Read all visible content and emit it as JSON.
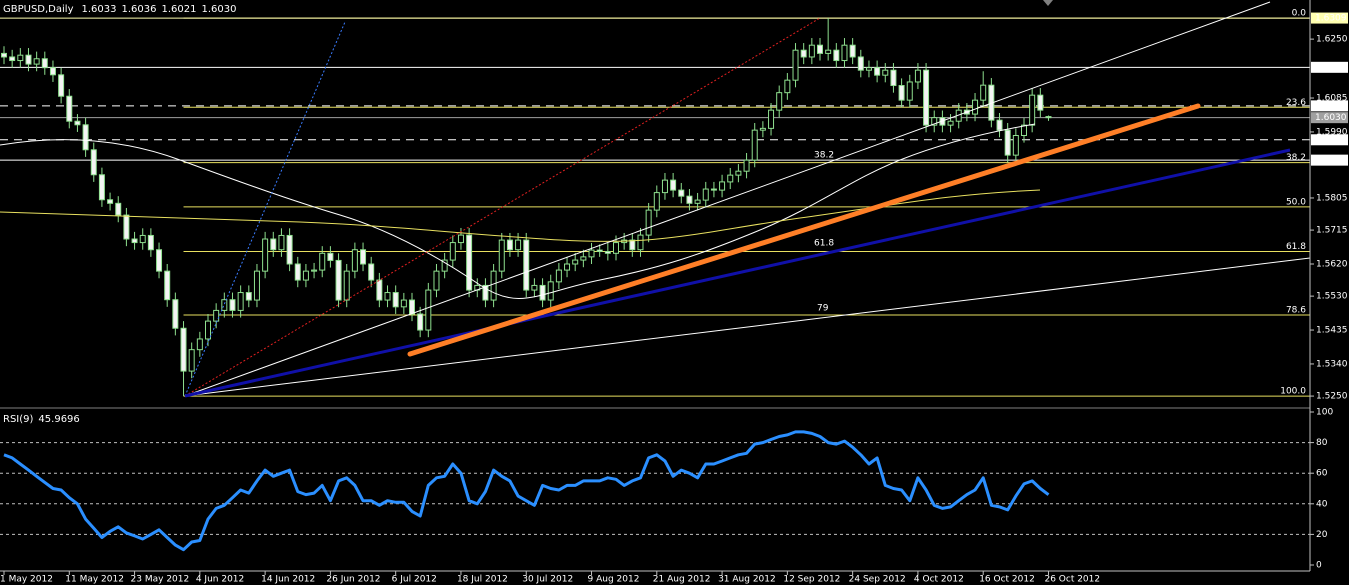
{
  "chart_data": [
    {
      "type": "candlestick",
      "title": "GBPUSD,Daily",
      "quote": [
        "1.6033",
        "1.6036",
        "1.6021",
        "1.6030"
      ],
      "categories": [
        "1 May 2012",
        null,
        null,
        null,
        null,
        null,
        null,
        null,
        "11 May 2012",
        null,
        null,
        null,
        null,
        null,
        null,
        null,
        "23 May 2012",
        null,
        null,
        null,
        null,
        null,
        null,
        null,
        "4 Jun 2012",
        null,
        null,
        null,
        null,
        null,
        null,
        null,
        "14 Jun 2012",
        null,
        null,
        null,
        null,
        null,
        null,
        null,
        "26 Jun 2012",
        null,
        null,
        null,
        null,
        null,
        null,
        null,
        "6 Jul 2012",
        null,
        null,
        null,
        null,
        null,
        null,
        null,
        "18 Jul 2012",
        null,
        null,
        null,
        null,
        null,
        null,
        null,
        "30 Jul 2012",
        null,
        null,
        null,
        null,
        null,
        null,
        null,
        "9 Aug 2012",
        null,
        null,
        null,
        null,
        null,
        null,
        null,
        "21 Aug 2012",
        null,
        null,
        null,
        null,
        null,
        null,
        null,
        "31 Aug 2012",
        null,
        null,
        null,
        null,
        null,
        null,
        null,
        "12 Sep 2012",
        null,
        null,
        null,
        null,
        null,
        null,
        null,
        "24 Sep 2012",
        null,
        null,
        null,
        null,
        null,
        null,
        null,
        "4 Oct 2012",
        null,
        null,
        null,
        null,
        null,
        null,
        null,
        "16 Oct 2012",
        null,
        null,
        null,
        null,
        null,
        null,
        null,
        "26 Oct 2012"
      ],
      "ohlc": [
        [
          1.621,
          1.623,
          1.618,
          1.62
        ],
        [
          1.62,
          1.622,
          1.617,
          1.619
        ],
        [
          1.619,
          1.6225,
          1.617,
          1.6205
        ],
        [
          1.6205,
          1.6225,
          1.616,
          1.618
        ],
        [
          1.618,
          1.6215,
          1.616,
          1.6195
        ],
        [
          1.6195,
          1.6215,
          1.615,
          1.617
        ],
        [
          1.617,
          1.619,
          1.613,
          1.615
        ],
        [
          1.615,
          1.617,
          1.607,
          1.609
        ],
        [
          1.609,
          1.611,
          1.6,
          1.602
        ],
        [
          1.602,
          1.604,
          1.599,
          1.601
        ],
        [
          1.601,
          1.603,
          1.592,
          1.594
        ],
        [
          1.594,
          1.596,
          1.585,
          1.587
        ],
        [
          1.587,
          1.589,
          1.578,
          1.58
        ],
        [
          1.58,
          1.582,
          1.577,
          1.579
        ],
        [
          1.579,
          1.581,
          1.5737,
          1.5757
        ],
        [
          1.5757,
          1.5777,
          1.567,
          1.569
        ],
        [
          1.569,
          1.571,
          1.566,
          1.568
        ],
        [
          1.568,
          1.572,
          1.566,
          1.57
        ],
        [
          1.57,
          1.572,
          1.564,
          1.566
        ],
        [
          1.566,
          1.568,
          1.558,
          1.56
        ],
        [
          1.56,
          1.562,
          1.55,
          1.552
        ],
        [
          1.552,
          1.554,
          1.542,
          1.544
        ],
        [
          1.544,
          1.546,
          1.525,
          1.532
        ],
        [
          1.532,
          1.54,
          1.53,
          1.538
        ],
        [
          1.538,
          1.543,
          1.536,
          1.541
        ],
        [
          1.541,
          1.548,
          1.539,
          1.546
        ],
        [
          1.546,
          1.551,
          1.544,
          1.549
        ],
        [
          1.549,
          1.554,
          1.547,
          1.552
        ],
        [
          1.552,
          1.554,
          1.547,
          1.549
        ],
        [
          1.549,
          1.556,
          1.547,
          1.554
        ],
        [
          1.554,
          1.556,
          1.5499,
          1.5519
        ],
        [
          1.5519,
          1.562,
          1.5499,
          1.56
        ],
        [
          1.56,
          1.571,
          1.558,
          1.569
        ],
        [
          1.569,
          1.571,
          1.564,
          1.566
        ],
        [
          1.566,
          1.572,
          1.564,
          1.57
        ],
        [
          1.57,
          1.572,
          1.56,
          1.562
        ],
        [
          1.562,
          1.564,
          1.5555,
          1.5575
        ],
        [
          1.5575,
          1.562,
          1.5555,
          1.56
        ],
        [
          1.56,
          1.5623,
          1.558,
          1.5603
        ],
        [
          1.5603,
          1.567,
          1.5583,
          1.565
        ],
        [
          1.565,
          1.567,
          1.561,
          1.563
        ],
        [
          1.563,
          1.565,
          1.5499,
          1.5519
        ],
        [
          1.5519,
          1.562,
          1.5499,
          1.56
        ],
        [
          1.56,
          1.568,
          1.558,
          1.566
        ],
        [
          1.566,
          1.568,
          1.56,
          1.562
        ],
        [
          1.562,
          1.564,
          1.5555,
          1.5575
        ],
        [
          1.5575,
          1.5595,
          1.5499,
          1.5519
        ],
        [
          1.5519,
          1.556,
          1.5499,
          1.554
        ],
        [
          1.554,
          1.556,
          1.548,
          1.55
        ],
        [
          1.55,
          1.5539,
          1.548,
          1.5519
        ],
        [
          1.5519,
          1.5539,
          1.546,
          1.548
        ],
        [
          1.548,
          1.55,
          1.5415,
          1.5435
        ],
        [
          1.5435,
          1.5567,
          1.5415,
          1.5547
        ],
        [
          1.5547,
          1.562,
          1.5527,
          1.56
        ],
        [
          1.56,
          1.5651,
          1.558,
          1.5631
        ],
        [
          1.5631,
          1.57,
          1.5611,
          1.568
        ],
        [
          1.568,
          1.5721,
          1.566,
          1.5701
        ],
        [
          1.5701,
          1.5721,
          1.5527,
          1.5547
        ],
        [
          1.5547,
          1.558,
          1.5527,
          1.556
        ],
        [
          1.556,
          1.558,
          1.5499,
          1.5519
        ],
        [
          1.5519,
          1.562,
          1.5499,
          1.56
        ],
        [
          1.56,
          1.5707,
          1.558,
          1.5687
        ],
        [
          1.5687,
          1.5707,
          1.564,
          1.566
        ],
        [
          1.566,
          1.5707,
          1.564,
          1.5687
        ],
        [
          1.5687,
          1.5707,
          1.5527,
          1.5547
        ],
        [
          1.5547,
          1.558,
          1.5527,
          1.556
        ],
        [
          1.556,
          1.558,
          1.5499,
          1.5519
        ],
        [
          1.5519,
          1.559,
          1.5499,
          1.557
        ],
        [
          1.557,
          1.5623,
          1.555,
          1.5603
        ],
        [
          1.5603,
          1.564,
          1.5583,
          1.562
        ],
        [
          1.562,
          1.5651,
          1.56,
          1.5631
        ],
        [
          1.5631,
          1.566,
          1.5611,
          1.564
        ],
        [
          1.564,
          1.5679,
          1.562,
          1.5659
        ],
        [
          1.5659,
          1.5675,
          1.564,
          1.5655
        ],
        [
          1.5655,
          1.5679,
          1.563,
          1.565
        ],
        [
          1.565,
          1.57,
          1.563,
          1.568
        ],
        [
          1.568,
          1.5707,
          1.566,
          1.5687
        ],
        [
          1.5687,
          1.5707,
          1.564,
          1.566
        ],
        [
          1.566,
          1.5721,
          1.564,
          1.5701
        ],
        [
          1.5701,
          1.5791,
          1.5681,
          1.5771
        ],
        [
          1.5771,
          1.584,
          1.5751,
          1.582
        ],
        [
          1.582,
          1.5875,
          1.58,
          1.5855
        ],
        [
          1.5855,
          1.5875,
          1.5807,
          1.5827
        ],
        [
          1.5827,
          1.5847,
          1.579,
          1.581
        ],
        [
          1.581,
          1.583,
          1.577,
          1.579
        ],
        [
          1.579,
          1.5819,
          1.577,
          1.5799
        ],
        [
          1.5799,
          1.585,
          1.5779,
          1.583
        ],
        [
          1.583,
          1.585,
          1.5807,
          1.5827
        ],
        [
          1.5827,
          1.587,
          1.5807,
          1.585
        ],
        [
          1.585,
          1.5889,
          1.583,
          1.5869
        ],
        [
          1.5869,
          1.59,
          1.5849,
          1.588
        ],
        [
          1.588,
          1.5931,
          1.586,
          1.5911
        ],
        [
          1.5911,
          1.6015,
          1.5891,
          1.5995
        ],
        [
          1.5995,
          1.602,
          1.5975,
          1.6
        ],
        [
          1.6,
          1.6071,
          1.598,
          1.6051
        ],
        [
          1.6051,
          1.612,
          1.6031,
          1.61
        ],
        [
          1.61,
          1.6155,
          1.608,
          1.6135
        ],
        [
          1.6135,
          1.6239,
          1.6115,
          1.6219
        ],
        [
          1.6219,
          1.6239,
          1.618,
          1.62
        ],
        [
          1.62,
          1.6253,
          1.618,
          1.6233
        ],
        [
          1.6233,
          1.6253,
          1.619,
          1.621
        ],
        [
          1.621,
          1.6309,
          1.619,
          1.6219
        ],
        [
          1.6219,
          1.6239,
          1.617,
          1.619
        ],
        [
          1.619,
          1.6253,
          1.617,
          1.6233
        ],
        [
          1.6233,
          1.6253,
          1.618,
          1.62
        ],
        [
          1.62,
          1.622,
          1.6143,
          1.6163
        ],
        [
          1.6163,
          1.619,
          1.6143,
          1.617
        ],
        [
          1.617,
          1.619,
          1.6129,
          1.6149
        ],
        [
          1.6149,
          1.6183,
          1.6129,
          1.6163
        ],
        [
          1.6163,
          1.6183,
          1.61,
          1.612
        ],
        [
          1.612,
          1.614,
          1.6059,
          1.6079
        ],
        [
          1.6079,
          1.615,
          1.6059,
          1.613
        ],
        [
          1.613,
          1.6183,
          1.611,
          1.6163
        ],
        [
          1.6163,
          1.6183,
          1.5989,
          1.6009
        ],
        [
          1.6009,
          1.605,
          1.5989,
          1.603
        ],
        [
          1.603,
          1.605,
          1.5989,
          1.6009
        ],
        [
          1.6009,
          1.604,
          1.5989,
          1.602
        ],
        [
          1.602,
          1.6071,
          1.6,
          1.6051
        ],
        [
          1.6051,
          1.6071,
          1.602,
          1.604
        ],
        [
          1.604,
          1.6099,
          1.602,
          1.6079
        ],
        [
          1.6079,
          1.616,
          1.6059,
          1.6121
        ],
        [
          1.6121,
          1.6141,
          1.6003,
          1.6023
        ],
        [
          1.6023,
          1.6043,
          1.5975,
          1.5995
        ],
        [
          1.5995,
          1.6015,
          1.5905,
          1.5925
        ],
        [
          1.5925,
          1.6,
          1.5905,
          1.598
        ],
        [
          1.598,
          1.6029,
          1.596,
          1.6009
        ],
        [
          1.6009,
          1.6113,
          1.5989,
          1.6093
        ],
        [
          1.6093,
          1.6113,
          1.6031,
          1.6051
        ],
        [
          1.6033,
          1.6036,
          1.6021,
          1.603
        ]
      ],
      "up_color": "#000000",
      "down_color": "#f4f4f4",
      "wick_color": "#8fe08f",
      "ylim": [
        1.5225,
        1.6354
      ],
      "yticks": [
        {
          "value": 1.625,
          "label": "1.6250"
        },
        1.6085,
        {
          "value": 1.599,
          "label": "1.5990"
        },
        1.5805,
        1.5715,
        {
          "value": 1.562,
          "label": "1.5620"
        },
        {
          "value": 1.553,
          "label": "1.5530"
        },
        1.5435,
        {
          "value": 1.534,
          "label": "1.5340"
        },
        {
          "value": 1.525,
          "label": "1.5250"
        }
      ],
      "levels": [
        {
          "value": 1.6309,
          "label": "1.6309",
          "color": "#ffffb0",
          "style": "solid"
        },
        {
          "value": 1.6171,
          "label": "1.6171",
          "color": "#ffffff",
          "style": "solid"
        },
        {
          "value": 1.6063,
          "label": "1.6063",
          "color": "#ffffff",
          "style": "dashed"
        },
        {
          "value": 1.603,
          "label": "1.6030",
          "color": "#a0a0a0",
          "style": "solid"
        },
        {
          "value": 1.5968,
          "label": "1.5968",
          "color": "#ffffff",
          "style": "dashed"
        },
        {
          "value": 1.5911,
          "label": "1.5911",
          "color": "#ffffff",
          "style": "solid"
        }
      ],
      "fib_color": "#e8e060",
      "fib_levels": [
        {
          "value": 1.6309,
          "label": "0.0"
        },
        {
          "value": 1.6059,
          "label": "23.6"
        },
        {
          "value": 1.5904,
          "label": "38.2"
        },
        {
          "value": 1.578,
          "label": "50.0"
        },
        {
          "value": 1.5655,
          "label": "61.8"
        },
        {
          "value": 1.5477,
          "label": "78.6"
        },
        {
          "value": 1.525,
          "label": "100.0"
        }
      ],
      "annotations": [
        "38.2",
        "61.8",
        "79"
      ],
      "grid": false
    },
    {
      "type": "line",
      "title": "RSI(9)",
      "color": "#2b8fff",
      "values": [
        72,
        70,
        66,
        62,
        58,
        54,
        50,
        49,
        44,
        40,
        30,
        24,
        18,
        22,
        25,
        21,
        19,
        17,
        20,
        23,
        18,
        13,
        10,
        15,
        16,
        30,
        37,
        39,
        44,
        49,
        47,
        55,
        62,
        58,
        60,
        62,
        48,
        46,
        47,
        52,
        42,
        55,
        57,
        52,
        42,
        42,
        39,
        42,
        41,
        41,
        35,
        32,
        52,
        57,
        58,
        66,
        60,
        42,
        40,
        48,
        62,
        58,
        55,
        45,
        42,
        39,
        52,
        50,
        49,
        52,
        52,
        55,
        55,
        55,
        57,
        56,
        52,
        55,
        57,
        70,
        72,
        68,
        58,
        62,
        60,
        57,
        66,
        66,
        68,
        70,
        72,
        73,
        79,
        80,
        82,
        84,
        85,
        87,
        87,
        86,
        84,
        80,
        79,
        81,
        77,
        72,
        66,
        70,
        52,
        50,
        49,
        42,
        57,
        49,
        39,
        37,
        38,
        42,
        46,
        49,
        57,
        39,
        38,
        36,
        45,
        53,
        55,
        50,
        45.9696
      ],
      "ylim": [
        0,
        100
      ],
      "yticks": [
        0,
        20,
        40,
        60,
        80,
        100
      ],
      "grid": true
    }
  ]
}
